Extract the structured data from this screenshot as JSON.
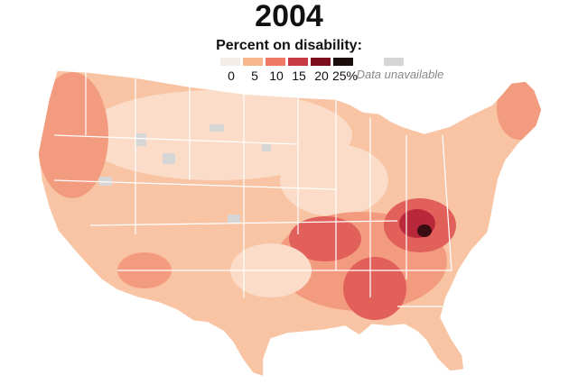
{
  "title": "2004",
  "legend": {
    "title": "Percent on disability:",
    "bins": [
      {
        "label": "0",
        "color": "#f4ece6"
      },
      {
        "label": "5",
        "color": "#f8b88f"
      },
      {
        "label": "10",
        "color": "#ef7a66"
      },
      {
        "label": "15",
        "color": "#c73a45"
      },
      {
        "label": "20",
        "color": "#7d0d1c"
      },
      {
        "label": "25%",
        "color": "#1c0d0d"
      }
    ],
    "unavailable": {
      "label": "Data unavailable",
      "color": "#d6d6d6"
    }
  },
  "colors": {
    "map_base": "#f8c4a3",
    "map_light": "#fbdcc8",
    "map_mid": "#f39b7e",
    "map_high": "#e2605a",
    "map_very_high": "#b8283a",
    "map_peak": "#3a0d12",
    "county_borders": "#ffffff"
  }
}
